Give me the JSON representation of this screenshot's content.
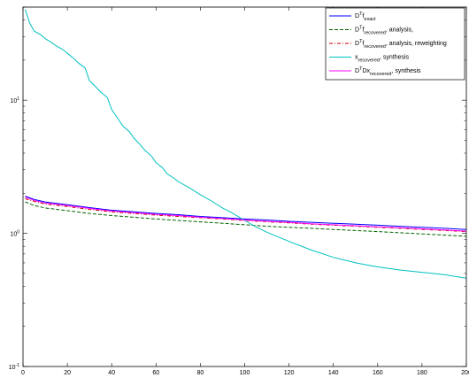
{
  "chart_data": {
    "type": "line",
    "title": "",
    "xlabel": "",
    "ylabel": "",
    "xlim": [
      0,
      200
    ],
    "ylim": [
      0.1,
      50
    ],
    "yscale": "log",
    "grid": false,
    "legend_position": "top-right",
    "x_ticks": [
      0,
      20,
      40,
      60,
      80,
      100,
      120,
      140,
      160,
      180,
      200
    ],
    "x_tick_labels": [
      "0",
      "20",
      "40",
      "60",
      "80",
      "100",
      "120",
      "140",
      "160",
      "180",
      "200"
    ],
    "y_ticks": [
      0.1,
      1,
      10
    ],
    "y_tick_labels": [
      {
        "base": "10",
        "exp": "-1"
      },
      {
        "base": "10",
        "exp": "0"
      },
      {
        "base": "10",
        "exp": "1"
      }
    ],
    "series": [
      {
        "name": "D^T f_exact",
        "legend_parts": [
          {
            "t": "D"
          },
          {
            "t": "T",
            "s": "sup"
          },
          {
            "t": "f"
          },
          {
            "t": "exact",
            "s": "sub"
          }
        ],
        "color": "#0000ff",
        "dash": "",
        "x": [
          1,
          5,
          10,
          20,
          30,
          40,
          50,
          60,
          70,
          80,
          90,
          100,
          110,
          120,
          130,
          140,
          150,
          160,
          170,
          180,
          190,
          200
        ],
        "y": [
          1.9,
          1.8,
          1.72,
          1.64,
          1.56,
          1.49,
          1.45,
          1.41,
          1.38,
          1.34,
          1.31,
          1.28,
          1.26,
          1.23,
          1.21,
          1.19,
          1.17,
          1.15,
          1.13,
          1.11,
          1.09,
          1.07
        ]
      },
      {
        "name": "D^T f_recovered, analysis,",
        "legend_parts": [
          {
            "t": "D"
          },
          {
            "t": "T",
            "s": "sup"
          },
          {
            "t": "f"
          },
          {
            "t": "recovered",
            "s": "sub"
          },
          {
            "t": ", analysis,"
          }
        ],
        "color": "#006400",
        "dash": "4,2",
        "x": [
          1,
          5,
          10,
          20,
          30,
          40,
          50,
          60,
          70,
          80,
          90,
          100,
          110,
          120,
          130,
          140,
          150,
          160,
          170,
          180,
          190,
          200
        ],
        "y": [
          1.72,
          1.62,
          1.55,
          1.48,
          1.41,
          1.36,
          1.32,
          1.28,
          1.25,
          1.22,
          1.19,
          1.16,
          1.13,
          1.11,
          1.09,
          1.07,
          1.05,
          1.03,
          1.01,
          0.99,
          0.97,
          0.95
        ]
      },
      {
        "name": "D^T f_recovered, analysis, reweighting",
        "legend_parts": [
          {
            "t": "D"
          },
          {
            "t": "T",
            "s": "sup"
          },
          {
            "t": "f"
          },
          {
            "t": "recovered",
            "s": "sub"
          },
          {
            "t": ", analysis, reweighting"
          }
        ],
        "color": "#cc0000",
        "dash": "4,2,1,2",
        "x": [
          1,
          5,
          10,
          20,
          30,
          40,
          50,
          60,
          70,
          80,
          90,
          100,
          110,
          120,
          130,
          140,
          150,
          160,
          170,
          180,
          190,
          200
        ],
        "y": [
          1.82,
          1.74,
          1.66,
          1.59,
          1.51,
          1.45,
          1.41,
          1.37,
          1.34,
          1.31,
          1.28,
          1.25,
          1.22,
          1.2,
          1.17,
          1.15,
          1.13,
          1.11,
          1.09,
          1.07,
          1.05,
          1.03
        ]
      },
      {
        "name": "x_recovered, synthesis",
        "legend_parts": [
          {
            "t": "x"
          },
          {
            "t": "recovered",
            "s": "sub"
          },
          {
            "t": ", synthesis"
          }
        ],
        "color": "#00c0c0",
        "dash": "",
        "x": [
          1,
          3,
          5,
          8,
          10,
          13,
          15,
          18,
          20,
          23,
          25,
          28,
          30,
          33,
          35,
          38,
          40,
          43,
          45,
          48,
          50,
          53,
          55,
          58,
          60,
          63,
          65,
          68,
          70,
          75,
          80,
          85,
          90,
          95,
          100,
          105,
          110,
          120,
          130,
          140,
          150,
          160,
          170,
          180,
          190,
          200
        ],
        "y": [
          48,
          38,
          33,
          31,
          29,
          27,
          25.5,
          24,
          22.5,
          20.5,
          19,
          17.5,
          14,
          12.5,
          11.5,
          10.5,
          8.5,
          7.2,
          6.4,
          5.8,
          5.2,
          4.6,
          4.2,
          3.8,
          3.4,
          3.1,
          2.8,
          2.6,
          2.45,
          2.2,
          1.95,
          1.75,
          1.55,
          1.4,
          1.25,
          1.12,
          1.02,
          0.87,
          0.75,
          0.66,
          0.6,
          0.56,
          0.53,
          0.51,
          0.49,
          0.46
        ]
      },
      {
        "name": "D^T D x_recovered, synthesis",
        "legend_parts": [
          {
            "t": "D"
          },
          {
            "t": "T",
            "s": "sup"
          },
          {
            "t": "Dx"
          },
          {
            "t": "recovered",
            "s": "sub"
          },
          {
            "t": ", synthesis"
          }
        ],
        "color": "#ff00ff",
        "dash": "",
        "x": [
          1,
          5,
          10,
          20,
          30,
          40,
          50,
          60,
          70,
          80,
          90,
          100,
          110,
          120,
          130,
          140,
          150,
          160,
          170,
          180,
          190,
          200
        ],
        "y": [
          1.87,
          1.77,
          1.69,
          1.62,
          1.54,
          1.47,
          1.43,
          1.39,
          1.36,
          1.32,
          1.29,
          1.26,
          1.23,
          1.21,
          1.18,
          1.16,
          1.14,
          1.12,
          1.1,
          1.08,
          1.06,
          1.04
        ]
      }
    ]
  }
}
